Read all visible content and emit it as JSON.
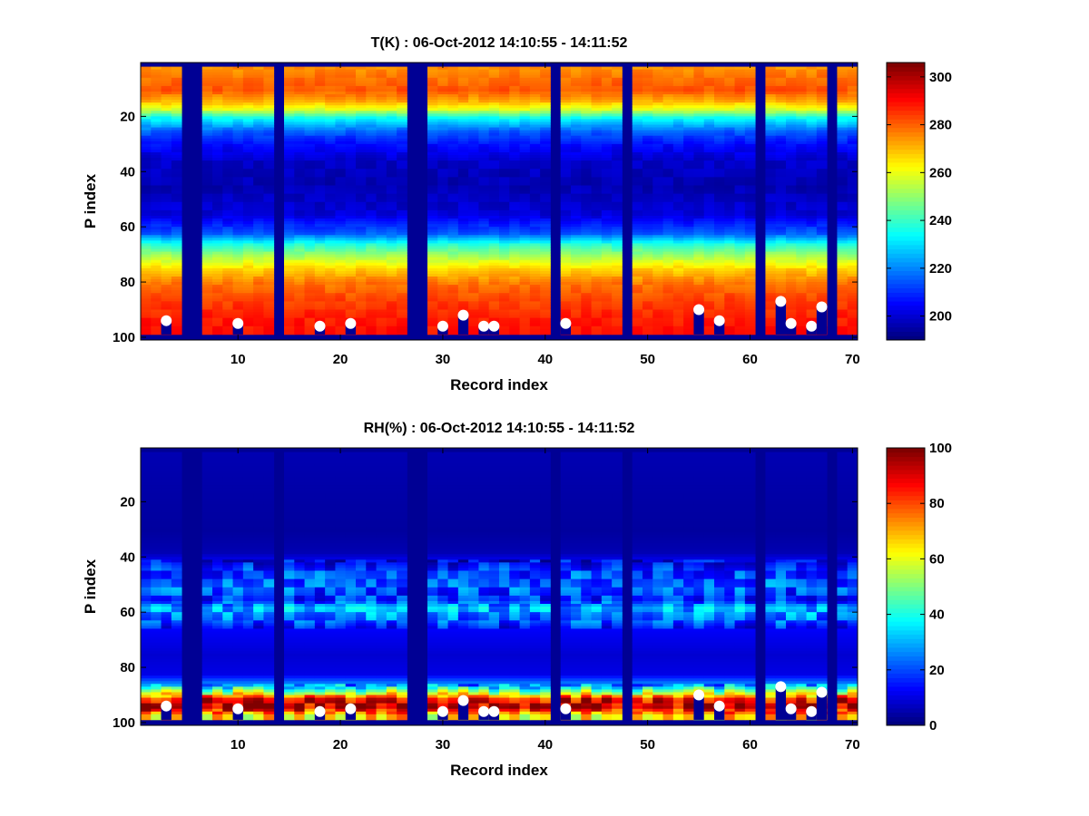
{
  "chart_data": [
    {
      "type": "heatmap",
      "title": "T(K) : 06-Oct-2012 14:10:55 - 14:11:52",
      "xlabel": "Record index",
      "ylabel": "P index",
      "xlim": [
        0.5,
        70.5
      ],
      "ylim": [
        1,
        100
      ],
      "y_reversed": true,
      "xticks": [
        10,
        20,
        30,
        40,
        50,
        60,
        70
      ],
      "yticks": [
        20,
        40,
        60,
        80,
        100
      ],
      "colormap": "jet",
      "colorbar": {
        "range": [
          190,
          306
        ],
        "ticks": [
          200,
          220,
          240,
          260,
          280,
          300
        ]
      },
      "profile_levels_K": [
        [
          1,
          198
        ],
        [
          2,
          275
        ],
        [
          5,
          278
        ],
        [
          10,
          282
        ],
        [
          14,
          272
        ],
        [
          17,
          258
        ],
        [
          20,
          235
        ],
        [
          25,
          215
        ],
        [
          30,
          205
        ],
        [
          36,
          198
        ],
        [
          45,
          196
        ],
        [
          55,
          200
        ],
        [
          62,
          215
        ],
        [
          66,
          238
        ],
        [
          70,
          252
        ],
        [
          75,
          268
        ],
        [
          80,
          278
        ],
        [
          86,
          284
        ],
        [
          92,
          288
        ],
        [
          97,
          290
        ]
      ],
      "missing_columns": [
        5,
        6,
        14,
        27,
        28,
        41,
        48,
        61,
        68
      ],
      "surface_markers": [
        {
          "x": 3,
          "y": 94
        },
        {
          "x": 10,
          "y": 95
        },
        {
          "x": 18,
          "y": 96
        },
        {
          "x": 21,
          "y": 95
        },
        {
          "x": 30,
          "y": 96
        },
        {
          "x": 32,
          "y": 92
        },
        {
          "x": 34,
          "y": 96
        },
        {
          "x": 35,
          "y": 96
        },
        {
          "x": 42,
          "y": 95
        },
        {
          "x": 55,
          "y": 90
        },
        {
          "x": 57,
          "y": 94
        },
        {
          "x": 63,
          "y": 87
        },
        {
          "x": 64,
          "y": 95
        },
        {
          "x": 66,
          "y": 96
        },
        {
          "x": 67,
          "y": 89
        }
      ]
    },
    {
      "type": "heatmap",
      "title": "RH(%) : 06-Oct-2012 14:10:55 - 14:11:52",
      "xlabel": "Record index",
      "ylabel": "P index",
      "xlim": [
        0.5,
        70.5
      ],
      "ylim": [
        1,
        100
      ],
      "y_reversed": true,
      "xticks": [
        10,
        20,
        30,
        40,
        50,
        60,
        70
      ],
      "yticks": [
        20,
        40,
        60,
        80,
        100
      ],
      "colormap": "jet",
      "colorbar": {
        "range": [
          0,
          100
        ],
        "ticks": [
          0,
          20,
          40,
          60,
          80,
          100
        ]
      },
      "profile_levels_pct": [
        [
          1,
          5
        ],
        [
          30,
          3
        ],
        [
          38,
          5
        ],
        [
          44,
          18
        ],
        [
          50,
          22
        ],
        [
          55,
          16
        ],
        [
          58,
          30
        ],
        [
          62,
          24
        ],
        [
          66,
          12
        ],
        [
          75,
          8
        ],
        [
          82,
          10
        ],
        [
          86,
          28
        ],
        [
          89,
          60
        ],
        [
          91,
          88
        ],
        [
          94,
          95
        ],
        [
          97,
          65
        ]
      ],
      "missing_columns": [
        5,
        6,
        14,
        27,
        28,
        41,
        48,
        61,
        68
      ],
      "surface_markers": [
        {
          "x": 3,
          "y": 94
        },
        {
          "x": 10,
          "y": 95
        },
        {
          "x": 18,
          "y": 96
        },
        {
          "x": 21,
          "y": 95
        },
        {
          "x": 30,
          "y": 96
        },
        {
          "x": 32,
          "y": 92
        },
        {
          "x": 34,
          "y": 96
        },
        {
          "x": 35,
          "y": 96
        },
        {
          "x": 42,
          "y": 95
        },
        {
          "x": 55,
          "y": 90
        },
        {
          "x": 57,
          "y": 94
        },
        {
          "x": 63,
          "y": 87
        },
        {
          "x": 64,
          "y": 95
        },
        {
          "x": 66,
          "y": 96
        },
        {
          "x": 67,
          "y": 89
        }
      ]
    }
  ]
}
